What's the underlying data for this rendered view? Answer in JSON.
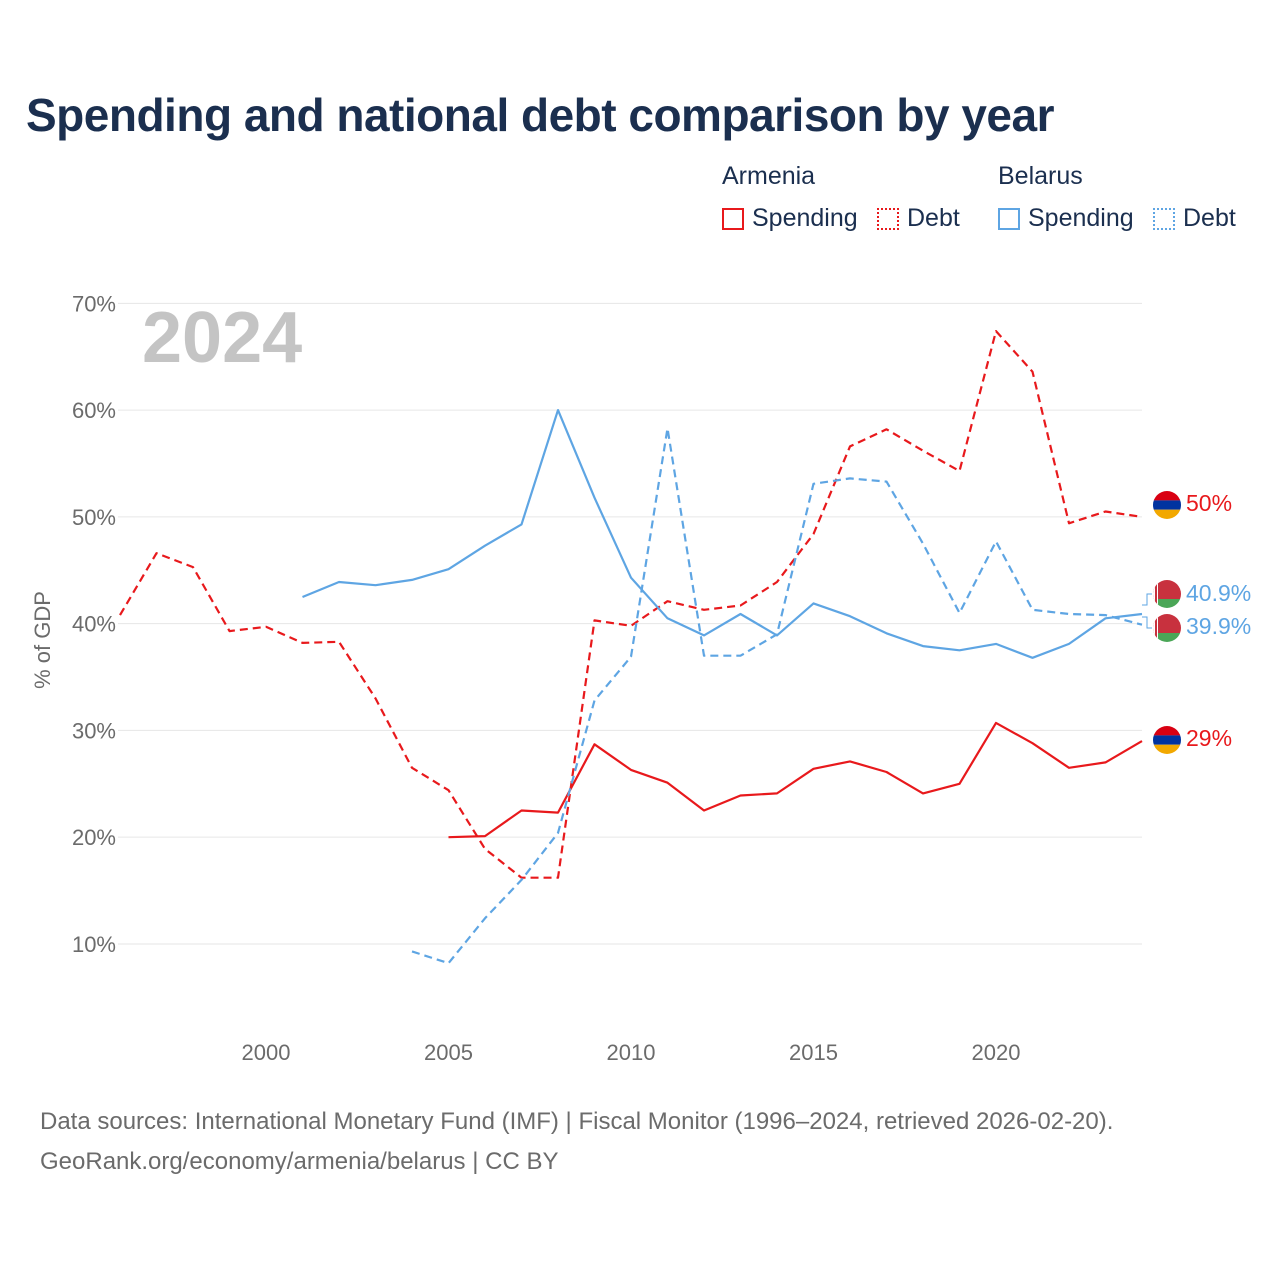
{
  "header": {
    "title": "Spending and national debt comparison by year"
  },
  "legend": {
    "groups": [
      {
        "name": "Armenia",
        "items": [
          {
            "label": "Spending",
            "style": "solid"
          },
          {
            "label": "Debt",
            "style": "dotted"
          }
        ]
      },
      {
        "name": "Belarus",
        "items": [
          {
            "label": "Spending",
            "style": "solid"
          },
          {
            "label": "Debt",
            "style": "dotted"
          }
        ]
      }
    ]
  },
  "colors": {
    "armenia": "#e8191c",
    "belarus": "#5ea5e3",
    "grid": "#e6e6e6",
    "axis_text": "#6b6b6b",
    "year_watermark": "#c4c4c4",
    "title": "#1b2f4f"
  },
  "chart_data": {
    "type": "line",
    "year_watermark": "2024",
    "ylabel": "% of GDP",
    "xlim": [
      1996,
      2024
    ],
    "ylim": [
      4,
      72
    ],
    "yticks": [
      10,
      20,
      30,
      40,
      50,
      60,
      70
    ],
    "ytick_labels": [
      "10%",
      "20%",
      "30%",
      "40%",
      "50%",
      "60%",
      "70%"
    ],
    "xticks": [
      2000,
      2005,
      2010,
      2015,
      2020
    ],
    "xtick_labels": [
      "2000",
      "2005",
      "2010",
      "2015",
      "2020"
    ],
    "series": [
      {
        "name": "Armenia Debt",
        "country": "Armenia",
        "color_key": "armenia",
        "dashed": true,
        "end_label": "50%",
        "x": [
          1996,
          1997,
          1998,
          1999,
          2000,
          2001,
          2002,
          2003,
          2004,
          2005,
          2006,
          2007,
          2008,
          2009,
          2010,
          2011,
          2012,
          2013,
          2014,
          2015,
          2016,
          2017,
          2018,
          2019,
          2020,
          2021,
          2022,
          2023,
          2024
        ],
        "values": [
          40.8,
          46.6,
          45.3,
          39.3,
          39.7,
          38.2,
          38.3,
          33.0,
          26.5,
          24.4,
          18.9,
          16.2,
          16.2,
          40.3,
          39.8,
          42.1,
          41.3,
          41.7,
          43.9,
          48.4,
          56.6,
          58.2,
          56.2,
          54.3,
          67.4,
          63.6,
          49.4,
          50.5,
          50.0
        ]
      },
      {
        "name": "Armenia Spending",
        "country": "Armenia",
        "color_key": "armenia",
        "dashed": false,
        "end_label": "29%",
        "x": [
          2005,
          2006,
          2007,
          2008,
          2009,
          2010,
          2011,
          2012,
          2013,
          2014,
          2015,
          2016,
          2017,
          2018,
          2019,
          2020,
          2021,
          2022,
          2023,
          2024
        ],
        "values": [
          20.0,
          20.1,
          22.5,
          22.3,
          28.7,
          26.3,
          25.1,
          22.5,
          23.9,
          24.1,
          26.4,
          27.1,
          26.1,
          24.1,
          25.0,
          30.7,
          28.8,
          26.5,
          27.0,
          29.0
        ]
      },
      {
        "name": "Belarus Spending",
        "country": "Belarus",
        "color_key": "belarus",
        "dashed": false,
        "end_label": "40.9%",
        "x": [
          2001,
          2002,
          2003,
          2004,
          2005,
          2006,
          2007,
          2008,
          2009,
          2010,
          2011,
          2012,
          2013,
          2014,
          2015,
          2016,
          2017,
          2018,
          2019,
          2020,
          2021,
          2022,
          2023,
          2024
        ],
        "values": [
          42.5,
          43.9,
          43.6,
          44.1,
          45.1,
          47.3,
          49.3,
          60.0,
          51.8,
          44.3,
          40.5,
          38.9,
          40.9,
          38.9,
          41.9,
          40.7,
          39.1,
          37.9,
          37.5,
          38.1,
          36.8,
          38.1,
          40.5,
          40.9
        ]
      },
      {
        "name": "Belarus Debt",
        "country": "Belarus",
        "color_key": "belarus",
        "dashed": true,
        "end_label": "39.9%",
        "x": [
          2004,
          2005,
          2006,
          2007,
          2008,
          2009,
          2010,
          2011,
          2012,
          2013,
          2014,
          2015,
          2016,
          2017,
          2018,
          2019,
          2020,
          2021,
          2022,
          2023,
          2024
        ],
        "values": [
          9.3,
          8.2,
          12.4,
          16.0,
          20.4,
          32.8,
          36.9,
          58.3,
          37.0,
          37.0,
          39.0,
          53.1,
          53.6,
          53.3,
          47.5,
          41.0,
          47.7,
          41.3,
          40.9,
          40.8,
          39.9
        ]
      }
    ]
  },
  "footer": {
    "source": "Data sources: International Monetary Fund (IMF) | Fiscal Monitor (1996–2024, retrieved 2026-02-20).",
    "credit": "GeoRank.org/economy/armenia/belarus | CC BY"
  }
}
